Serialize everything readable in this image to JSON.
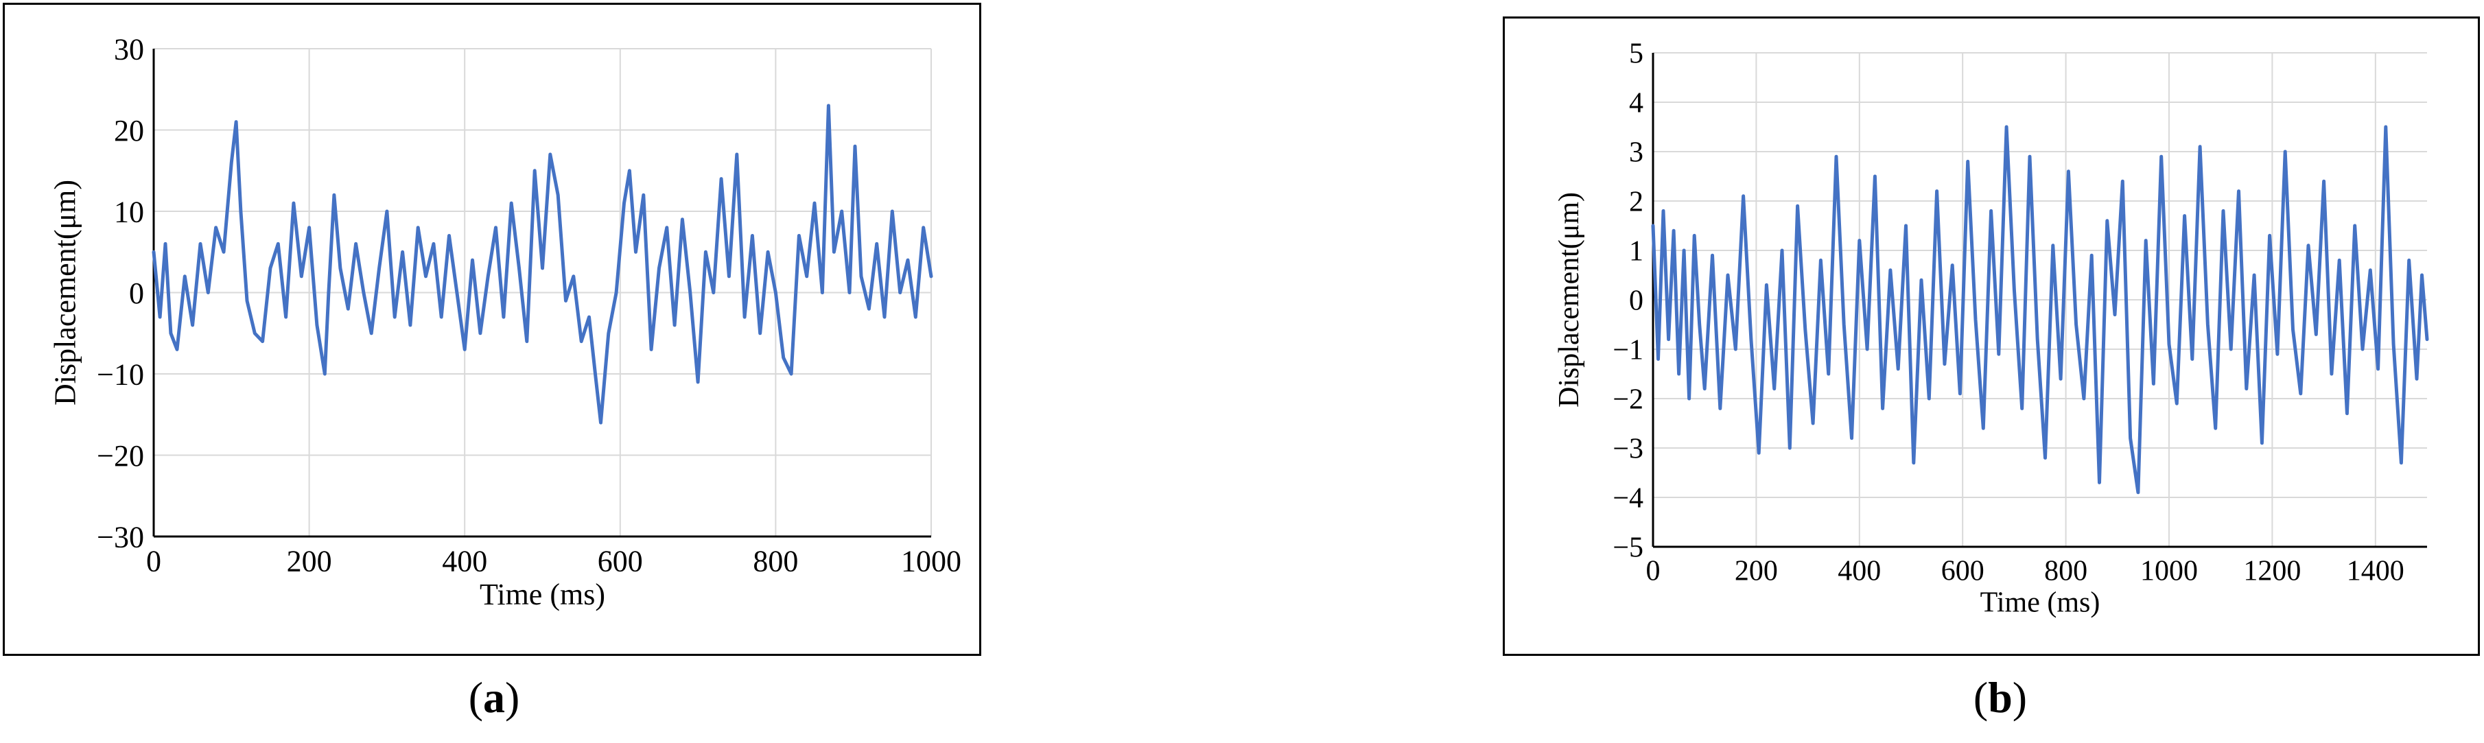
{
  "panels": [
    {
      "caption_open": "(",
      "caption_letter": "a",
      "caption_close": ")"
    },
    {
      "caption_open": "(",
      "caption_letter": "b",
      "caption_close": ")"
    }
  ],
  "chart_data": [
    {
      "type": "line",
      "xlabel": "Time (ms)",
      "ylabel": "Displacement(μm)",
      "xlim": [
        0,
        1000
      ],
      "ylim": [
        -30,
        30
      ],
      "xticks": [
        0,
        200,
        400,
        600,
        800,
        1000
      ],
      "yticks": [
        30,
        20,
        10,
        0,
        -10,
        -20,
        -30
      ],
      "ytick_labels": [
        "30",
        "20",
        "10",
        "0",
        "−10",
        "−20",
        "−30"
      ],
      "grid": true,
      "line_color": "#4472C4",
      "series": [
        {
          "x": [
            0,
            8,
            15,
            22,
            30,
            40,
            50,
            60,
            70,
            80,
            90,
            100,
            106,
            112,
            120,
            130,
            140,
            150,
            160,
            170,
            180,
            190,
            200,
            210,
            220,
            225,
            232,
            240,
            250,
            260,
            270,
            280,
            290,
            300,
            310,
            320,
            330,
            340,
            350,
            360,
            370,
            380,
            390,
            400,
            410,
            420,
            430,
            440,
            450,
            460,
            470,
            480,
            490,
            500,
            510,
            520,
            530,
            540,
            550,
            560,
            568,
            575,
            585,
            595,
            605,
            612,
            620,
            630,
            640,
            650,
            660,
            670,
            680,
            690,
            700,
            710,
            720,
            730,
            740,
            750,
            760,
            770,
            780,
            790,
            800,
            810,
            820,
            830,
            840,
            850,
            860,
            868,
            875,
            885,
            895,
            902,
            910,
            920,
            930,
            940,
            950,
            960,
            970,
            980,
            990,
            1000
          ],
          "values": [
            5,
            -3,
            6,
            -5,
            -7,
            2,
            -4,
            6,
            0,
            8,
            5,
            16,
            21,
            10,
            -1,
            -5,
            -6,
            3,
            6,
            -3,
            11,
            2,
            8,
            -4,
            -10,
            0,
            12,
            3,
            -2,
            6,
            0,
            -5,
            3,
            10,
            -3,
            5,
            -4,
            8,
            2,
            6,
            -3,
            7,
            0,
            -7,
            4,
            -5,
            2,
            8,
            -3,
            11,
            3,
            -6,
            15,
            3,
            17,
            12,
            -1,
            2,
            -6,
            -3,
            -10,
            -16,
            -5,
            0,
            11,
            15,
            5,
            12,
            -7,
            3,
            8,
            -4,
            9,
            0,
            -11,
            5,
            0,
            14,
            2,
            17,
            -3,
            7,
            -5,
            5,
            0,
            -8,
            -10,
            7,
            2,
            11,
            0,
            23,
            5,
            10,
            0,
            18,
            2,
            -2,
            6,
            -3,
            10,
            0,
            4,
            -3,
            8,
            2
          ]
        }
      ]
    },
    {
      "type": "line",
      "xlabel": "Time (ms)",
      "ylabel": "Displacement(μm)",
      "xlim": [
        0,
        1500
      ],
      "ylim": [
        -5,
        5
      ],
      "xticks": [
        0,
        200,
        400,
        600,
        800,
        1000,
        1200,
        1400
      ],
      "yticks": [
        5,
        4,
        3,
        2,
        1,
        0,
        -1,
        -2,
        -3,
        -4,
        -5
      ],
      "ytick_labels": [
        "5",
        "4",
        "3",
        "2",
        "1",
        "0",
        "−1",
        "−2",
        "−3",
        "−4",
        "−5"
      ],
      "grid": true,
      "line_color": "#4472C4",
      "series": [
        {
          "x": [
            0,
            10,
            20,
            30,
            40,
            50,
            60,
            70,
            80,
            90,
            100,
            115,
            130,
            145,
            160,
            175,
            190,
            205,
            220,
            235,
            250,
            265,
            280,
            295,
            310,
            325,
            340,
            355,
            370,
            385,
            400,
            415,
            430,
            445,
            460,
            475,
            490,
            505,
            520,
            535,
            550,
            565,
            580,
            595,
            610,
            625,
            640,
            655,
            670,
            685,
            700,
            715,
            730,
            745,
            760,
            775,
            790,
            805,
            820,
            835,
            850,
            865,
            880,
            895,
            910,
            925,
            940,
            955,
            970,
            985,
            1000,
            1015,
            1030,
            1045,
            1060,
            1075,
            1090,
            1105,
            1120,
            1135,
            1150,
            1165,
            1180,
            1195,
            1210,
            1225,
            1240,
            1255,
            1270,
            1285,
            1300,
            1315,
            1330,
            1345,
            1360,
            1375,
            1390,
            1405,
            1420,
            1435,
            1450,
            1465,
            1480,
            1490,
            1500
          ],
          "values": [
            1.5,
            -1.2,
            1.8,
            -0.8,
            1.4,
            -1.5,
            1.0,
            -2.0,
            1.3,
            -0.5,
            -1.8,
            0.9,
            -2.2,
            0.5,
            -1.0,
            2.1,
            -0.8,
            -3.1,
            0.3,
            -1.8,
            1.0,
            -3.0,
            1.9,
            -0.6,
            -2.5,
            0.8,
            -1.5,
            2.9,
            -0.5,
            -2.8,
            1.2,
            -1.0,
            2.5,
            -2.2,
            0.6,
            -1.4,
            1.5,
            -3.3,
            0.4,
            -2.0,
            2.2,
            -1.3,
            0.7,
            -1.9,
            2.8,
            -0.4,
            -2.6,
            1.8,
            -1.1,
            3.5,
            0.2,
            -2.2,
            2.9,
            -0.8,
            -3.2,
            1.1,
            -1.6,
            2.6,
            -0.5,
            -2.0,
            0.9,
            -3.7,
            1.6,
            -0.3,
            2.4,
            -2.8,
            -3.9,
            1.2,
            -1.7,
            2.9,
            -0.9,
            -2.1,
            1.7,
            -1.2,
            3.1,
            -0.5,
            -2.6,
            1.8,
            -1.0,
            2.2,
            -1.8,
            0.5,
            -2.9,
            1.3,
            -1.1,
            3.0,
            -0.6,
            -1.9,
            1.1,
            -0.7,
            2.4,
            -1.5,
            0.8,
            -2.3,
            1.5,
            -1.0,
            0.6,
            -1.4,
            3.5,
            -0.9,
            -3.3,
            0.8,
            -1.6,
            0.5,
            -0.8
          ]
        }
      ]
    }
  ]
}
